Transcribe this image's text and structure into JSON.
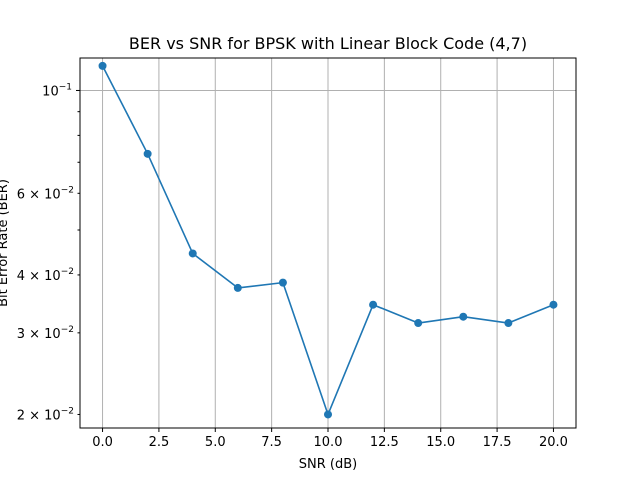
{
  "chart_data": {
    "type": "line",
    "title": "BER vs SNR for BPSK with Linear Block Code (4,7)",
    "xlabel": "SNR (dB)",
    "ylabel": "Bit Error Rate (BER)",
    "yscale": "log",
    "grid": true,
    "xlim": [
      -1.0,
      21.0
    ],
    "ylim": [
      0.0187,
      0.1175
    ],
    "x": [
      0,
      2,
      4,
      6,
      8,
      10,
      12,
      14,
      16,
      18,
      20
    ],
    "series": [
      {
        "color": "#1f77b4",
        "marker": "circle",
        "values": [
          0.113,
          0.073,
          0.0445,
          0.0375,
          0.0385,
          0.02,
          0.0345,
          0.0315,
          0.0325,
          0.0315,
          0.0345
        ]
      }
    ],
    "x_ticks": [
      {
        "value": 0.0,
        "label": "0.0"
      },
      {
        "value": 2.5,
        "label": "2.5"
      },
      {
        "value": 5.0,
        "label": "5.0"
      },
      {
        "value": 7.5,
        "label": "7.5"
      },
      {
        "value": 10.0,
        "label": "10.0"
      },
      {
        "value": 12.5,
        "label": "12.5"
      },
      {
        "value": 15.0,
        "label": "15.0"
      },
      {
        "value": 17.5,
        "label": "17.5"
      },
      {
        "value": 20.0,
        "label": "20.0"
      }
    ],
    "y_major_ticks": [
      {
        "value": 0.1,
        "base": "10",
        "exp": "−1"
      }
    ],
    "y_minor_ticks": [
      {
        "value": 0.02,
        "mant": "2",
        "base": "10",
        "exp": "−2"
      },
      {
        "value": 0.03,
        "mant": "3",
        "base": "10",
        "exp": "−2"
      },
      {
        "value": 0.04,
        "mant": "4",
        "base": "10",
        "exp": "−2"
      },
      {
        "value": 0.05,
        "mant": "",
        "base": "",
        "exp": ""
      },
      {
        "value": 0.06,
        "mant": "6",
        "base": "10",
        "exp": "−2"
      },
      {
        "value": 0.07,
        "mant": "",
        "base": "",
        "exp": ""
      },
      {
        "value": 0.08,
        "mant": "",
        "base": "",
        "exp": ""
      },
      {
        "value": 0.09,
        "mant": "",
        "base": "",
        "exp": ""
      }
    ]
  }
}
